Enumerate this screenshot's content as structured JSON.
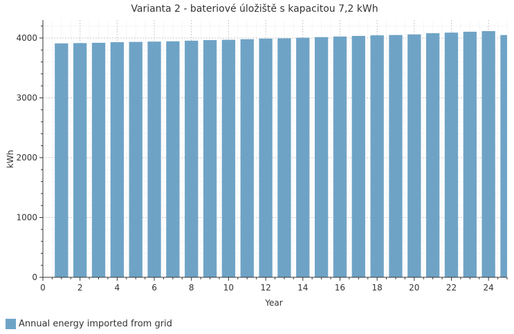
{
  "chart_data": {
    "type": "bar",
    "title": "Varianta 2 - bateriové úložiště s kapacitou 7,2 kWh",
    "xlabel": "Year",
    "ylabel": "kWh",
    "xlim": [
      0,
      25
    ],
    "ylim": [
      0,
      4300
    ],
    "x_ticks": [
      0,
      2,
      4,
      6,
      8,
      10,
      12,
      14,
      16,
      18,
      20,
      22,
      24
    ],
    "y_ticks": [
      0,
      1000,
      2000,
      3000,
      4000
    ],
    "grid": true,
    "legend_position": "bottom-left",
    "series": [
      {
        "name": "Annual energy imported from grid",
        "color": "#6fa3c6",
        "x": [
          1,
          2,
          3,
          4,
          5,
          6,
          7,
          8,
          9,
          10,
          11,
          12,
          13,
          14,
          15,
          16,
          17,
          18,
          19,
          20,
          21,
          22,
          23,
          24,
          25
        ],
        "values": [
          3910,
          3915,
          3920,
          3930,
          3935,
          3940,
          3945,
          3955,
          3965,
          3970,
          3980,
          3990,
          3995,
          4005,
          4015,
          4025,
          4035,
          4045,
          4050,
          4060,
          4080,
          4090,
          4105,
          4115,
          4050
        ]
      }
    ]
  }
}
